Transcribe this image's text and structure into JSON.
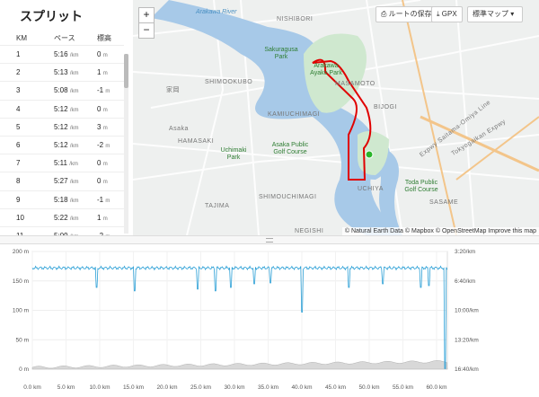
{
  "splits": {
    "title": "スプリット",
    "headers": [
      "KM",
      "ペース",
      "標高"
    ],
    "pace_unit": "/km",
    "elev_unit": "m",
    "rows": [
      {
        "km": "1",
        "pace": "5:16",
        "elev": "0"
      },
      {
        "km": "2",
        "pace": "5:13",
        "elev": "1"
      },
      {
        "km": "3",
        "pace": "5:08",
        "elev": "-1"
      },
      {
        "km": "4",
        "pace": "5:12",
        "elev": "0"
      },
      {
        "km": "5",
        "pace": "5:12",
        "elev": "3"
      },
      {
        "km": "6",
        "pace": "5:12",
        "elev": "-2"
      },
      {
        "km": "7",
        "pace": "5:11",
        "elev": "0"
      },
      {
        "km": "8",
        "pace": "5:27",
        "elev": "0"
      },
      {
        "km": "9",
        "pace": "5:18",
        "elev": "-1"
      },
      {
        "km": "10",
        "pace": "5:22",
        "elev": "1"
      },
      {
        "km": "11",
        "pace": "5:09",
        "elev": "-2"
      },
      {
        "km": "12",
        "pace": "5:12",
        "elev": "0"
      }
    ]
  },
  "map": {
    "zoom_in": "+",
    "zoom_out": "−",
    "save_route": "ルートの保存",
    "gpx": "GPX",
    "map_style": "標準マップ",
    "places": [
      {
        "id": "arakawa",
        "text": "Arakawa River"
      },
      {
        "id": "nishibori",
        "text": "NISHIBORI"
      },
      {
        "id": "sakuragusa",
        "text": "Sakuragusa Park"
      },
      {
        "id": "arakawaayako",
        "text": "Arakawa Ayako Park"
      },
      {
        "id": "shimookubo",
        "text": "SHIMOOKUBO"
      },
      {
        "id": "mitsumoto",
        "text": "MASAMOTO"
      },
      {
        "id": "bijogi",
        "text": "BIJOGI"
      },
      {
        "id": "kamiuchimagi",
        "text": "KAMIUCHIMAGI"
      },
      {
        "id": "asaka",
        "text": "Asaka"
      },
      {
        "id": "hamasaki",
        "text": "HAMASAKI"
      },
      {
        "id": "uchimakipark",
        "text": "Uchimaki Park"
      },
      {
        "id": "asakagolf",
        "text": "Asaka Public Golf Course"
      },
      {
        "id": "toda",
        "text": "Toda Public Golf Course"
      },
      {
        "id": "uchiya",
        "text": "UCHIYA"
      },
      {
        "id": "shimouchimagi",
        "text": "SHIMOUCHIMAGI"
      },
      {
        "id": "tajima",
        "text": "TAJIMA"
      },
      {
        "id": "sasame",
        "text": "SASAME"
      },
      {
        "id": "negishi",
        "text": "NEGISHI"
      },
      {
        "id": "kitado",
        "text": "家岡"
      },
      {
        "id": "expressway",
        "text": "Expwy Saitama-Omiya Line"
      },
      {
        "id": "tokyogaikan",
        "text": "Tokyogaikan Expwy"
      }
    ],
    "attribution": "© Natural Earth Data © Mapbox © OpenStreetMap Improve this map"
  },
  "chart_data": {
    "type": "line",
    "x_unit": "km",
    "x_ticks": [
      "0.0 km",
      "5.0 km",
      "10.0 km",
      "15.0 km",
      "20.0 km",
      "25.0 km",
      "30.0 km",
      "35.0 km",
      "40.0 km",
      "45.0 km",
      "50.0 km",
      "55.0 km",
      "60.0 km"
    ],
    "xlim": [
      0,
      61.6
    ],
    "left_ticks": [
      "200 m",
      "150 m",
      "100 m",
      "50 m",
      "0 m"
    ],
    "left_ylim": [
      0,
      200
    ],
    "right_ticks": [
      "3:20/km",
      "6:40/km",
      "10:00/km",
      "13:20/km",
      "16:40/km"
    ],
    "series": [
      {
        "color": "#2a9fd6",
        "baseline_pace": "5:12/km",
        "dips": [
          [
            9.5,
            7.4
          ],
          [
            15.2,
            7.8
          ],
          [
            24.5,
            7.6
          ],
          [
            27.2,
            7.8
          ],
          [
            29.5,
            7.4
          ],
          [
            33.0,
            7.0
          ],
          [
            35.4,
            6.9
          ],
          [
            40.0,
            10.2
          ],
          [
            47.0,
            7.4
          ],
          [
            52.0,
            7.0
          ],
          [
            57.7,
            7.4
          ],
          [
            58.9,
            7.2
          ],
          [
            61.3,
            16.6
          ]
        ]
      },
      {
        "color": "#b0b0b0",
        "elevation_start": 0,
        "elevation_end": 10
      }
    ]
  }
}
